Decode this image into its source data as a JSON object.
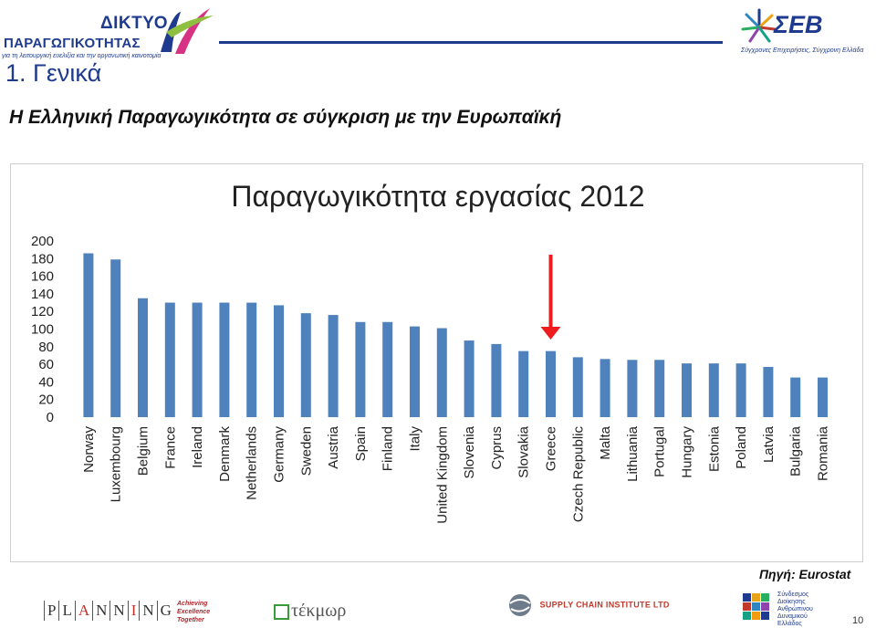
{
  "header": {
    "logo_left_line1": "ΔΙΚΤΥΟ",
    "logo_left_line2": "ΠΑΡΑΓΩΓΙΚΟΤΗΤΑΣ",
    "logo_left_tagline": "για τη λειτουργική ευελιξία και την οργανωτική καινοτομία",
    "logo_right_name": "ΣΕΒ",
    "logo_right_tagline": "Σύγχρονες Επιχειρήσεις, Σύγχρονη Ελλάδα",
    "section_title": "1. Γενικά",
    "subtitle": "Η Ελληνική Παραγωγικότητα σε σύγκριση με την Ευρωπαϊκή"
  },
  "chart_data": {
    "type": "bar",
    "title": "Παραγωγικότητα εργασίας 2012",
    "xlabel": "",
    "ylabel": "",
    "ylim": [
      0,
      200
    ],
    "yticks": [
      "200",
      "180",
      "160",
      "140",
      "120",
      "100",
      "80",
      "60",
      "40",
      "20",
      "0"
    ],
    "grid": false,
    "legend": "none",
    "bar_color": "#4f81bd",
    "highlight": "Greece",
    "highlight_color": "#ee1c1c",
    "categories": [
      "Norway",
      "Luxembourg",
      "Belgium",
      "France",
      "Ireland",
      "Denmark",
      "Netherlands",
      "Germany",
      "Sweden",
      "Austria",
      "Spain",
      "Finland",
      "Italy",
      "United Kingdom",
      "Slovenia",
      "Cyprus",
      "Slovakia",
      "Greece",
      "Czech Republic",
      "Malta",
      "Lithuania",
      "Portugal",
      "Hungary",
      "Estonia",
      "Poland",
      "Latvia",
      "Bulgaria",
      "Romania"
    ],
    "values": [
      186,
      179,
      135,
      130,
      130,
      130,
      130,
      127,
      118,
      116,
      108,
      108,
      103,
      101,
      87,
      83,
      75,
      75,
      68,
      66,
      65,
      65,
      61,
      61,
      61,
      57,
      45,
      45
    ]
  },
  "source": "Πηγή: Eurostat",
  "footer": {
    "planning_letters": [
      "P",
      "L",
      "A",
      "N",
      "N",
      "I",
      "N",
      "G"
    ],
    "achieving": [
      "Achieving",
      "Excellence",
      "Together"
    ],
    "tekmor": "τέκμωρ",
    "supply": "SUPPLY CHAIN INSTITUTE LTD",
    "eede": [
      "Σύνδεσμος",
      "Διοίκησης",
      "Ανθρώπινου",
      "Δυναμικού",
      "Ελλάδος"
    ],
    "page_number": "10"
  }
}
